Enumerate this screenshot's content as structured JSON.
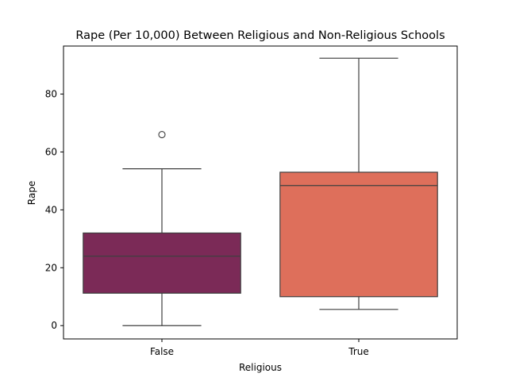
{
  "chart_data": {
    "type": "box",
    "title": "Rape (Per 10,000) Between Religious and Non-Religious Schools",
    "xlabel": "Religious",
    "ylabel": "Rape",
    "categories": [
      "False",
      "True"
    ],
    "yticks": [
      0,
      20,
      40,
      60,
      80
    ],
    "ylim": [
      -4.6,
      96.6
    ],
    "grid": false,
    "legend": "none",
    "boxes": [
      {
        "category": "False",
        "whisker_low": 0,
        "q1": 11.2,
        "median": 24,
        "q3": 32,
        "whisker_high": 54.2,
        "outliers": [
          66
        ],
        "color": "#7b2a57"
      },
      {
        "category": "True",
        "whisker_low": 5.6,
        "q1": 10,
        "median": 48.4,
        "q3": 53,
        "whisker_high": 92.4,
        "outliers": [],
        "color": "#de6f5b"
      }
    ]
  }
}
